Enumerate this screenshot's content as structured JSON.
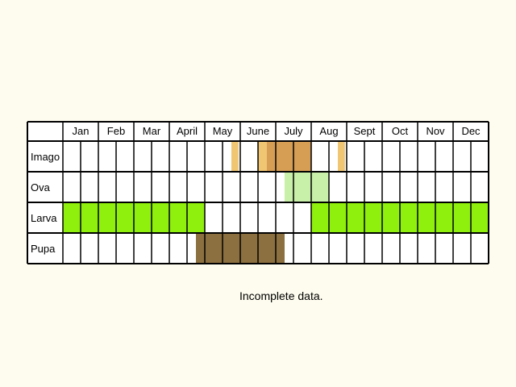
{
  "chart_data": {
    "type": "table",
    "months": [
      "Jan",
      "Feb",
      "Mar",
      "April",
      "May",
      "June",
      "July",
      "Aug",
      "Sept",
      "Oct",
      "Nov",
      "Dec"
    ],
    "periods_per_month": 2,
    "rows": [
      {
        "label": "Imago",
        "segments": [
          {
            "start": 9.5,
            "end": 9.9,
            "color": "#F0C673"
          },
          {
            "start": 11.0,
            "end": 11.5,
            "color": "#F0C673"
          },
          {
            "start": 11.5,
            "end": 14.0,
            "color": "#D69E55"
          },
          {
            "start": 15.5,
            "end": 15.9,
            "color": "#F0C673"
          }
        ]
      },
      {
        "label": "Ova",
        "segments": [
          {
            "start": 12.5,
            "end": 15.0,
            "color": "#C8F0A8"
          }
        ]
      },
      {
        "label": "Larva",
        "segments": [
          {
            "start": 0,
            "end": 8,
            "color": "#8FEF0D"
          },
          {
            "start": 14,
            "end": 24,
            "color": "#8FEF0D"
          }
        ]
      },
      {
        "label": "Pupa",
        "segments": [
          {
            "start": 7.5,
            "end": 12.5,
            "color": "#8C7040"
          }
        ]
      }
    ]
  },
  "note": "Incomplete data."
}
